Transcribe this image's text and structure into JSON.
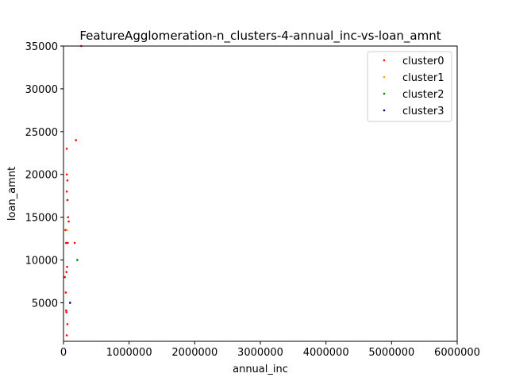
{
  "chart_data": {
    "type": "scatter",
    "title": "FeatureAgglomeration-n_clusters-4-annual_inc-vs-loan_amnt",
    "xlabel": "annual_inc",
    "ylabel": "loan_amnt",
    "xlim": [
      0,
      6000000
    ],
    "ylim": [
      500,
      35000
    ],
    "xticks": [
      0,
      1000000,
      2000000,
      3000000,
      4000000,
      5000000,
      6000000
    ],
    "xtick_labels": [
      "0",
      "1000000",
      "2000000",
      "3000000",
      "4000000",
      "5000000",
      "6000000"
    ],
    "yticks": [
      5000,
      10000,
      15000,
      20000,
      25000,
      30000,
      35000
    ],
    "ytick_labels": [
      "5000",
      "10000",
      "15000",
      "20000",
      "25000",
      "30000",
      "35000"
    ],
    "grid": false,
    "legend": {
      "placement": "top-right"
    },
    "series": [
      {
        "name": "cluster0",
        "color": "#ff0000",
        "points": [
          [
            270000,
            35000
          ],
          [
            190000,
            24000
          ],
          [
            50000,
            23000
          ],
          [
            50000,
            20000
          ],
          [
            60000,
            19300
          ],
          [
            50000,
            18000
          ],
          [
            60000,
            17000
          ],
          [
            70000,
            15000
          ],
          [
            80000,
            14500
          ],
          [
            30000,
            13500
          ],
          [
            40000,
            12000
          ],
          [
            50000,
            12000
          ],
          [
            65000,
            12000
          ],
          [
            170000,
            12000
          ],
          [
            55000,
            9200
          ],
          [
            45000,
            8600
          ],
          [
            20000,
            8000
          ],
          [
            35000,
            6200
          ],
          [
            40000,
            4100
          ],
          [
            45000,
            3900
          ],
          [
            60000,
            2500
          ],
          [
            50000,
            1200
          ]
        ]
      },
      {
        "name": "cluster1",
        "color": "#ffa500",
        "points": [
          [
            52000,
            13500
          ]
        ]
      },
      {
        "name": "cluster2",
        "color": "#008000",
        "points": [
          [
            210000,
            10000
          ]
        ]
      },
      {
        "name": "cluster3",
        "color": "#00008b",
        "points": [
          [
            100000,
            5000
          ]
        ]
      }
    ]
  }
}
